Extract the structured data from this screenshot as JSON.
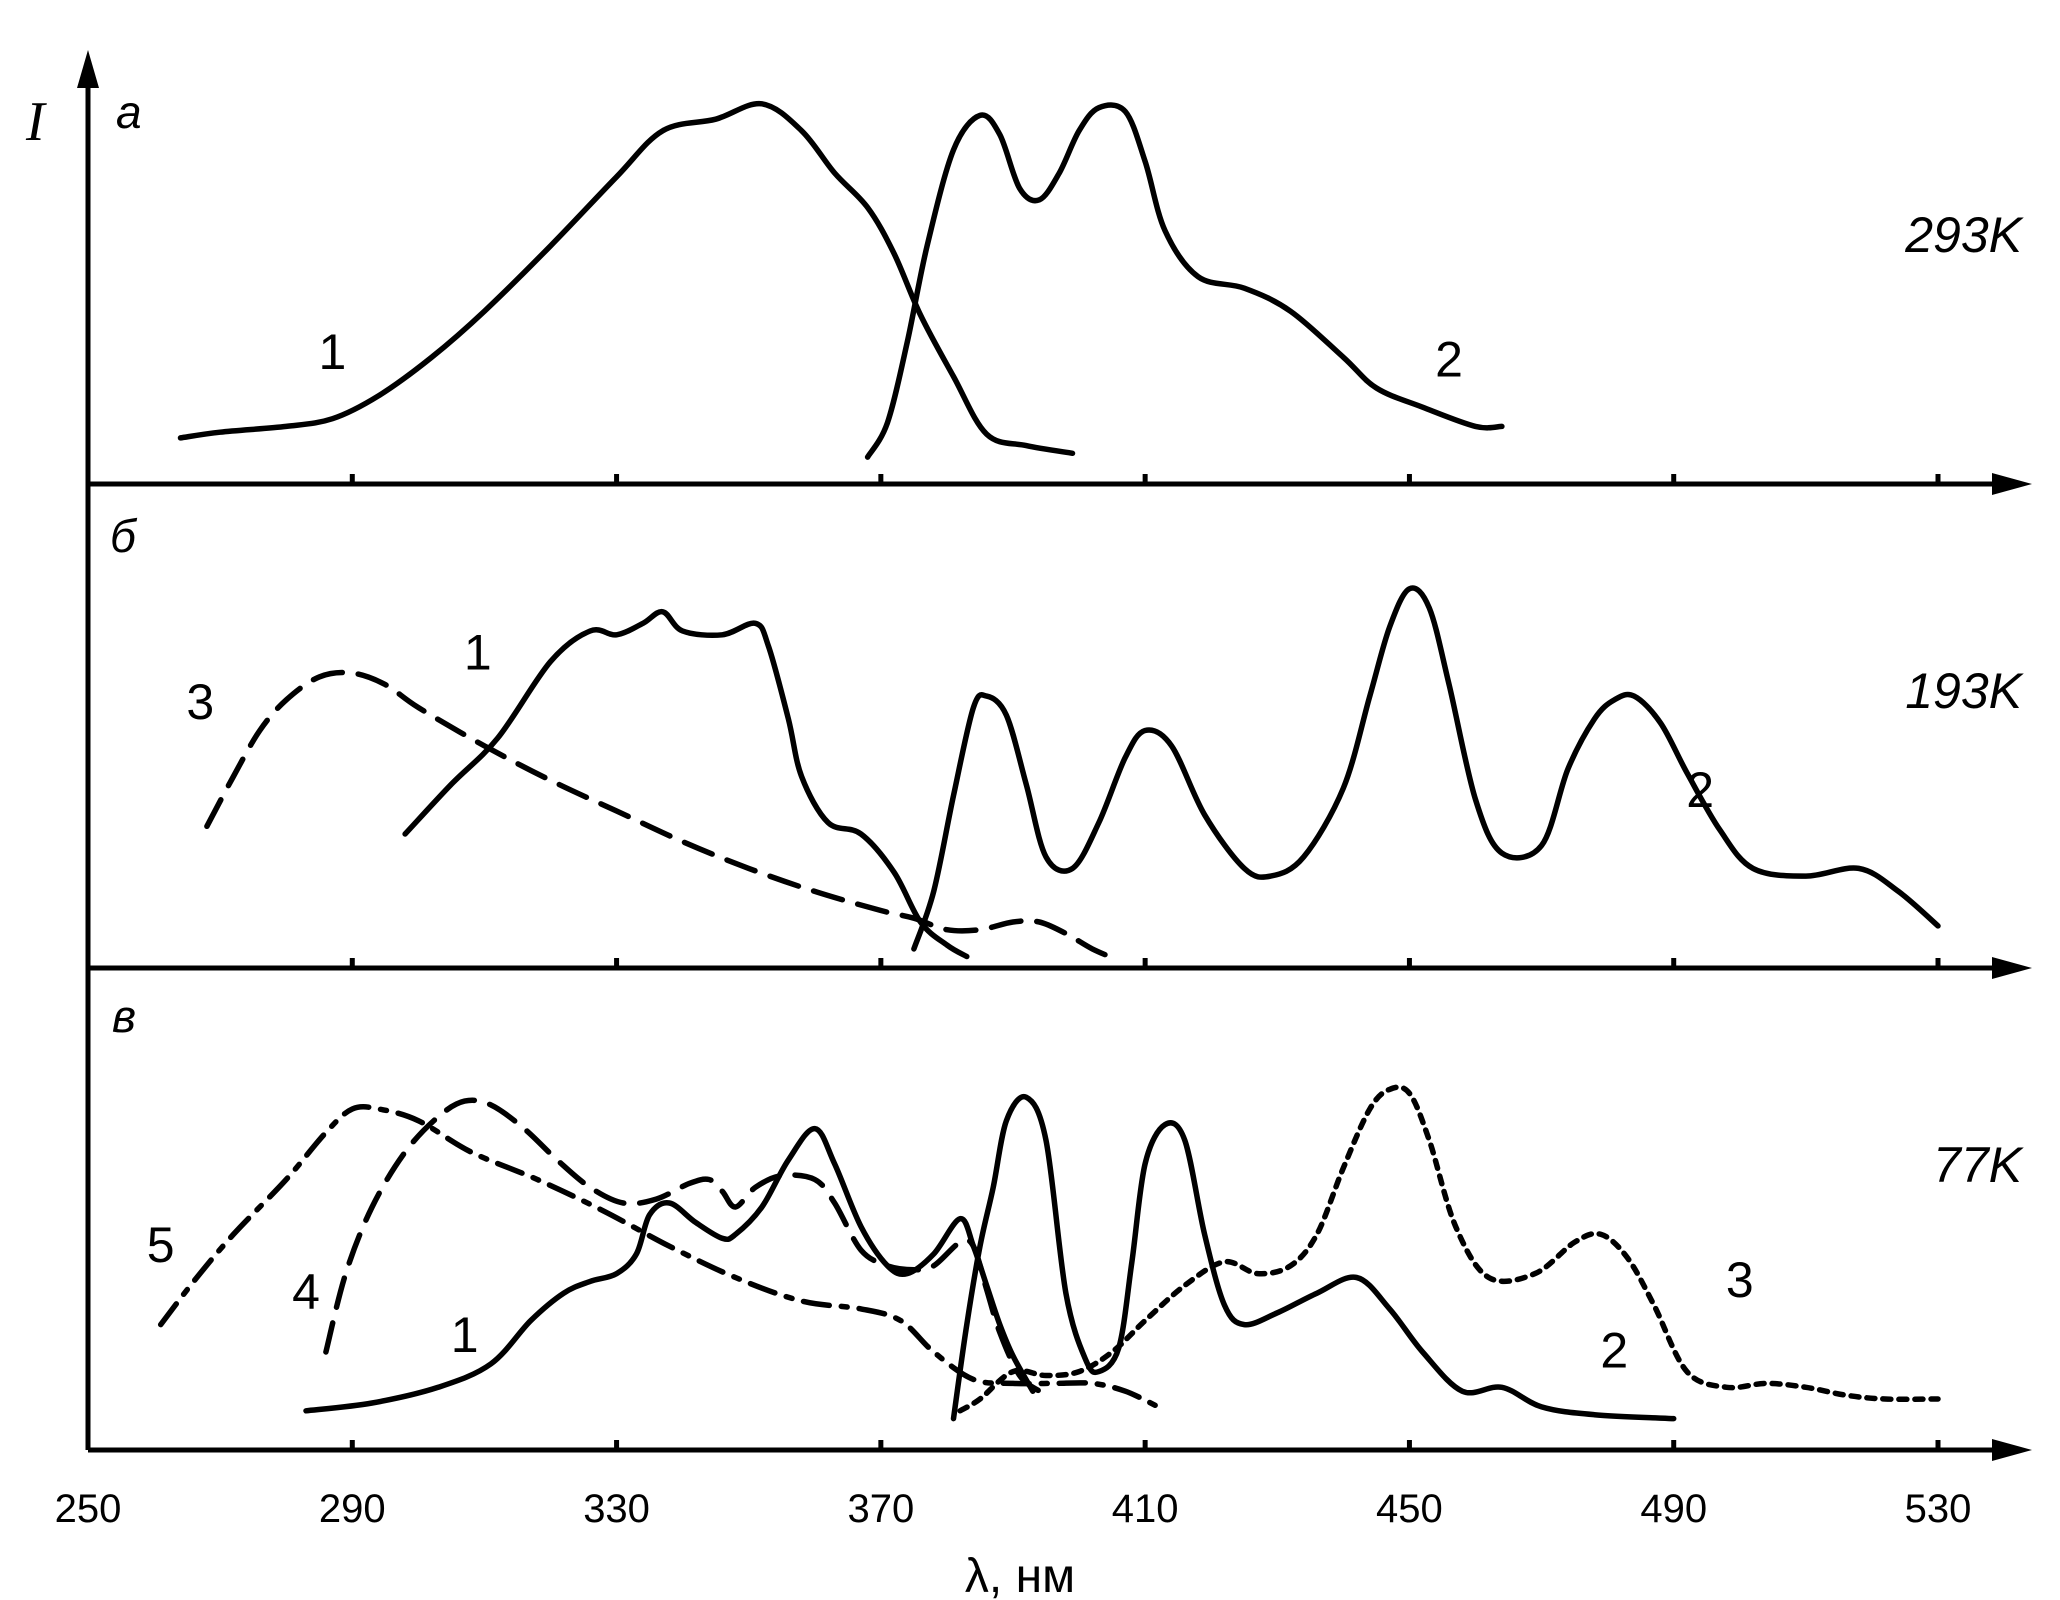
{
  "chart_data": {
    "type": "line",
    "y_label": "I",
    "x_label": "λ, нм",
    "x_range": [
      250,
      530
    ],
    "x_ticks": [
      250,
      290,
      330,
      370,
      410,
      450,
      490,
      530
    ],
    "tick_labels": [
      "250",
      "290",
      "330",
      "370",
      "410",
      "450",
      "490",
      "530"
    ],
    "y_range": [
      0,
      1
    ],
    "grid": false,
    "colors": {
      "ink": "#000000",
      "background": "#ffffff"
    },
    "panels": [
      {
        "label": "а",
        "temperature": "293K",
        "series": [
          {
            "name": "1",
            "dash": "solid",
            "x": [
              264,
              270,
              280,
              287,
              294,
              302,
              310,
              320,
              330,
              337,
              345,
              352,
              358,
              363,
              368,
              372,
              376,
              381,
              386,
              392,
              399
            ],
            "y": [
              0.12,
              0.135,
              0.15,
              0.17,
              0.23,
              0.33,
              0.45,
              0.62,
              0.8,
              0.92,
              0.95,
              0.99,
              0.92,
              0.81,
              0.72,
              0.6,
              0.44,
              0.28,
              0.13,
              0.1,
              0.08
            ]
          },
          {
            "name": "2",
            "dash": "solid",
            "x": [
              368,
              371,
              374,
              377,
              381,
              385,
              388,
              391,
              394,
              397,
              400,
              403,
              407,
              410,
              413,
              418,
              425,
              432,
              440,
              445,
              452,
              460,
              464
            ],
            "y": [
              0.07,
              0.16,
              0.37,
              0.62,
              0.87,
              0.96,
              0.91,
              0.77,
              0.74,
              0.81,
              0.92,
              0.98,
              0.97,
              0.84,
              0.66,
              0.54,
              0.51,
              0.45,
              0.33,
              0.25,
              0.2,
              0.15,
              0.15
            ]
          }
        ],
        "labels": [
          {
            "text": "1",
            "x": 287,
            "y": 0.3
          },
          {
            "text": "2",
            "x": 456,
            "y": 0.28
          }
        ]
      },
      {
        "label": "б",
        "temperature": "193K",
        "series": [
          {
            "name": "1",
            "dash": "solid",
            "x": [
              298,
              305,
              312,
              320,
              326,
              330,
              334,
              337,
              340,
              346,
              351,
              353,
              356,
              358,
              362,
              367,
              372,
              376,
              380,
              383
            ],
            "y": [
              0.35,
              0.48,
              0.6,
              0.8,
              0.88,
              0.87,
              0.9,
              0.93,
              0.88,
              0.87,
              0.9,
              0.84,
              0.65,
              0.5,
              0.38,
              0.35,
              0.25,
              0.12,
              0.06,
              0.03
            ]
          },
          {
            "name": "2",
            "dash": "solid",
            "x": [
              375,
              378,
              381,
              384,
              386,
              389,
              392,
              395,
              399,
              403,
              407,
              410,
              414,
              419,
              425,
              429,
              434,
              440,
              444,
              447,
              450,
              453,
              456,
              460,
              464,
              470,
              474,
              478,
              481,
              484,
              488,
              492,
              497,
              502,
              510,
              518,
              524,
              530
            ],
            "y": [
              0.05,
              0.2,
              0.45,
              0.68,
              0.71,
              0.66,
              0.48,
              0.29,
              0.26,
              0.38,
              0.55,
              0.62,
              0.58,
              0.4,
              0.26,
              0.24,
              0.29,
              0.47,
              0.71,
              0.89,
              0.99,
              0.94,
              0.74,
              0.44,
              0.3,
              0.32,
              0.52,
              0.65,
              0.7,
              0.71,
              0.64,
              0.51,
              0.36,
              0.26,
              0.24,
              0.26,
              0.2,
              0.11
            ]
          },
          {
            "name": "3",
            "dash": "dashed",
            "x": [
              268,
              272,
              276,
              280,
              285,
              290,
              295,
              300,
              310,
              320,
              330,
              340,
              350,
              360,
              370,
              375,
              380,
              385,
              390,
              394,
              398,
              402,
              406
            ],
            "y": [
              0.37,
              0.5,
              0.62,
              0.7,
              0.76,
              0.77,
              0.74,
              0.68,
              0.58,
              0.49,
              0.41,
              0.33,
              0.26,
              0.2,
              0.15,
              0.13,
              0.1,
              0.1,
              0.12,
              0.12,
              0.09,
              0.05,
              0.02
            ]
          }
        ],
        "labels": [
          {
            "text": "1",
            "x": 309,
            "y": 0.78
          },
          {
            "text": "2",
            "x": 494,
            "y": 0.42
          },
          {
            "text": "3",
            "x": 267,
            "y": 0.65
          }
        ]
      },
      {
        "label": "в",
        "temperature": "77K",
        "series": [
          {
            "name": "1",
            "dash": "solid",
            "x": [
              283,
              293,
              303,
              311,
              317,
              322,
              326,
              330,
              333,
              335,
              338,
              342,
              346,
              348,
              352,
              356,
              360,
              363,
              367,
              371,
              374,
              378,
              382,
              384,
              386,
              388,
              390,
              393
            ],
            "y": [
              0.1,
              0.12,
              0.16,
              0.22,
              0.33,
              0.4,
              0.43,
              0.45,
              0.5,
              0.6,
              0.63,
              0.58,
              0.54,
              0.55,
              0.62,
              0.74,
              0.82,
              0.73,
              0.57,
              0.47,
              0.45,
              0.5,
              0.59,
              0.52,
              0.42,
              0.32,
              0.24,
              0.15
            ]
          },
          {
            "name": "2",
            "dash": "solid",
            "x": [
              381,
              383,
              385,
              387,
              389,
              392,
              395,
              398,
              401,
              403,
              406,
              408,
              410,
              413,
              416,
              419,
              422,
              425,
              430,
              436,
              442,
              447,
              452,
              458,
              464,
              470,
              478,
              490
            ],
            "y": [
              0.08,
              0.32,
              0.52,
              0.67,
              0.84,
              0.9,
              0.79,
              0.4,
              0.23,
              0.2,
              0.26,
              0.48,
              0.73,
              0.83,
              0.79,
              0.55,
              0.37,
              0.32,
              0.35,
              0.4,
              0.44,
              0.36,
              0.25,
              0.15,
              0.16,
              0.11,
              0.09,
              0.08
            ]
          },
          {
            "name": "3",
            "dash": "dotted",
            "x": [
              382,
              385,
              390,
              395,
              400,
              405,
              410,
              416,
              422,
              427,
              432,
              436,
              440,
              444,
              447,
              450,
              453,
              457,
              462,
              469,
              475,
              479,
              483,
              487,
              492,
              498,
              504,
              510,
              516,
              522,
              530
            ],
            "y": [
              0.1,
              0.13,
              0.2,
              0.19,
              0.2,
              0.25,
              0.33,
              0.42,
              0.48,
              0.45,
              0.47,
              0.55,
              0.72,
              0.87,
              0.92,
              0.91,
              0.79,
              0.57,
              0.44,
              0.45,
              0.53,
              0.55,
              0.49,
              0.37,
              0.2,
              0.16,
              0.17,
              0.16,
              0.14,
              0.13,
              0.13
            ]
          },
          {
            "name": "4",
            "dash": "dashed",
            "x": [
              286,
              289,
              293,
              298,
              303,
              307,
              311,
              316,
              321,
              326,
              331,
              336,
              341,
              344,
              346,
              348,
              351,
              355,
              360,
              363,
              367,
              371,
              375,
              378,
              382,
              384,
              386,
              388,
              391,
              394
            ],
            "y": [
              0.25,
              0.45,
              0.62,
              0.76,
              0.85,
              0.89,
              0.88,
              0.82,
              0.74,
              0.67,
              0.63,
              0.64,
              0.68,
              0.69,
              0.66,
              0.62,
              0.67,
              0.7,
              0.69,
              0.63,
              0.51,
              0.47,
              0.46,
              0.47,
              0.53,
              0.52,
              0.41,
              0.3,
              0.19,
              0.15
            ]
          },
          {
            "name": "5",
            "dash": "dashdot",
            "x": [
              261,
              266,
              272,
              280,
              286,
              290,
              294,
              300,
              308,
              318,
              328,
              338,
              348,
              358,
              367,
              373,
              378,
              384,
              390,
              396,
              402,
              407,
              412
            ],
            "y": [
              0.32,
              0.43,
              0.55,
              0.69,
              0.81,
              0.87,
              0.87,
              0.84,
              0.76,
              0.69,
              0.61,
              0.52,
              0.44,
              0.38,
              0.36,
              0.33,
              0.25,
              0.18,
              0.17,
              0.17,
              0.17,
              0.15,
              0.11
            ]
          }
        ],
        "labels": [
          {
            "text": "1",
            "x": 307,
            "y": 0.25
          },
          {
            "text": "2",
            "x": 481,
            "y": 0.21
          },
          {
            "text": "3",
            "x": 500,
            "y": 0.39
          },
          {
            "text": "4",
            "x": 283,
            "y": 0.36
          },
          {
            "text": "5",
            "x": 261,
            "y": 0.48
          }
        ]
      }
    ]
  }
}
